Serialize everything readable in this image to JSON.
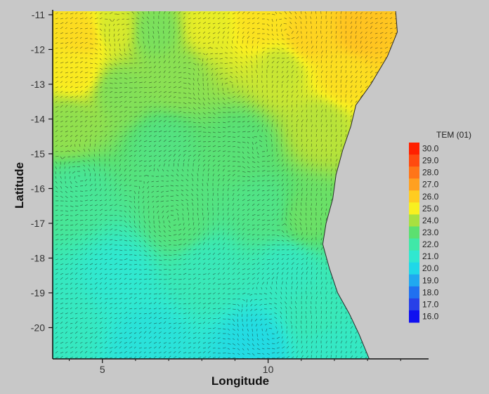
{
  "chart_data": {
    "type": "heatmap",
    "title": "",
    "xlabel": "Longitude",
    "ylabel": "Latitude",
    "xlim": [
      3.5,
      14.8
    ],
    "ylim": [
      -20.9,
      -10.9
    ],
    "x_ticks": [
      5,
      10
    ],
    "x_tick_labels": [
      "5",
      "10"
    ],
    "y_ticks": [
      -11,
      -12,
      -13,
      -14,
      -15,
      -16,
      -17,
      -18,
      -19,
      -20
    ],
    "y_tick_labels": [
      "-11",
      "-12",
      "-13",
      "-14",
      "-15",
      "-16",
      "-17",
      "-18",
      "-19",
      "-20"
    ],
    "overlay": "velocity vector arrows",
    "legend": {
      "title": "TEM (01)",
      "placement": "right",
      "levels": [
        30.0,
        29.0,
        28.0,
        27.0,
        26.0,
        25.0,
        24.0,
        23.0,
        22.0,
        21.0,
        20.0,
        19.0,
        18.0,
        17.0,
        16.0
      ],
      "labels": [
        "30.0",
        "29.0",
        "28.0",
        "27.0",
        "26.0",
        "25.0",
        "24.0",
        "23.0",
        "22.0",
        "21.0",
        "20.0",
        "19.0",
        "18.0",
        "17.0",
        "16.0"
      ],
      "colors": [
        "#ff2000",
        "#ff4a10",
        "#ff7518",
        "#ffa020",
        "#ffcc20",
        "#f8f020",
        "#a8e040",
        "#5ce070",
        "#40e8a8",
        "#30e8d0",
        "#20d8e8",
        "#20a8f0",
        "#2070f0",
        "#2840e8",
        "#1010f0"
      ]
    },
    "coastline": [
      [
        13.85,
        -10.9
      ],
      [
        13.9,
        -11.5
      ],
      [
        13.6,
        -12.2
      ],
      [
        13.1,
        -13.0
      ],
      [
        12.65,
        -13.6
      ],
      [
        12.5,
        -14.2
      ],
      [
        12.25,
        -14.9
      ],
      [
        12.05,
        -15.6
      ],
      [
        11.95,
        -16.3
      ],
      [
        11.75,
        -17.0
      ],
      [
        11.65,
        -17.6
      ],
      [
        11.85,
        -18.3
      ],
      [
        12.1,
        -19.0
      ],
      [
        12.45,
        -19.6
      ],
      [
        12.75,
        -20.2
      ],
      [
        13.05,
        -20.9
      ]
    ],
    "temperature_field": [
      {
        "lon": 4.4,
        "lat": -11.6,
        "temp": 25.6
      },
      {
        "lon": 4.2,
        "lat": -12.6,
        "temp": 25.2
      },
      {
        "lon": 5.3,
        "lat": -11.4,
        "temp": 24.6
      },
      {
        "lon": 6.6,
        "lat": -11.5,
        "temp": 23.4
      },
      {
        "lon": 8.2,
        "lat": -11.3,
        "temp": 24.8
      },
      {
        "lon": 9.8,
        "lat": -11.2,
        "temp": 25.4
      },
      {
        "lon": 11.2,
        "lat": -11.6,
        "temp": 25.8
      },
      {
        "lon": 12.8,
        "lat": -11.5,
        "temp": 26.2
      },
      {
        "lon": 12.3,
        "lat": -12.8,
        "temp": 25.5
      },
      {
        "lon": 10.4,
        "lat": -12.6,
        "temp": 24.4
      },
      {
        "lon": 7.2,
        "lat": -12.8,
        "temp": 23.6
      },
      {
        "lon": 5.5,
        "lat": -13.2,
        "temp": 23.5
      },
      {
        "lon": 4.0,
        "lat": -14.2,
        "temp": 23.7
      },
      {
        "lon": 11.6,
        "lat": -14.2,
        "temp": 24.2
      },
      {
        "lon": 6.8,
        "lat": -14.8,
        "temp": 22.7
      },
      {
        "lon": 9.2,
        "lat": -14.8,
        "temp": 22.9
      },
      {
        "lon": 4.2,
        "lat": -16.2,
        "temp": 22.3
      },
      {
        "lon": 7.3,
        "lat": -16.9,
        "temp": 22.8
      },
      {
        "lon": 9.8,
        "lat": -16.6,
        "temp": 22.6
      },
      {
        "lon": 11.2,
        "lat": -16.8,
        "temp": 23.2
      },
      {
        "lon": 5.5,
        "lat": -18.6,
        "temp": 21.0
      },
      {
        "lon": 3.9,
        "lat": -19.8,
        "temp": 21.4
      },
      {
        "lon": 8.2,
        "lat": -18.4,
        "temp": 21.6
      },
      {
        "lon": 10.6,
        "lat": -18.4,
        "temp": 21.4
      },
      {
        "lon": 11.4,
        "lat": -19.6,
        "temp": 21.6
      },
      {
        "lon": 6.4,
        "lat": -20.5,
        "temp": 20.6
      },
      {
        "lon": 9.6,
        "lat": -20.6,
        "temp": 20.2
      },
      {
        "lon": 11.8,
        "lat": -20.7,
        "temp": 21.3
      }
    ],
    "eddies": [
      {
        "lon": 7.2,
        "lat": -17.0,
        "r": 1.0
      },
      {
        "lon": 4.4,
        "lat": -15.8,
        "r": 0.7
      },
      {
        "lon": 8.9,
        "lat": -13.2,
        "r": 0.9
      },
      {
        "lon": 9.9,
        "lat": -15.0,
        "r": 0.6
      },
      {
        "lon": 10.2,
        "lat": -20.2,
        "r": 0.9
      },
      {
        "lon": 6.0,
        "lat": -12.0,
        "r": 0.8
      },
      {
        "lon": 10.9,
        "lat": -11.6,
        "r": 0.7
      },
      {
        "lon": 11.0,
        "lat": -17.4,
        "r": 0.6
      }
    ]
  }
}
